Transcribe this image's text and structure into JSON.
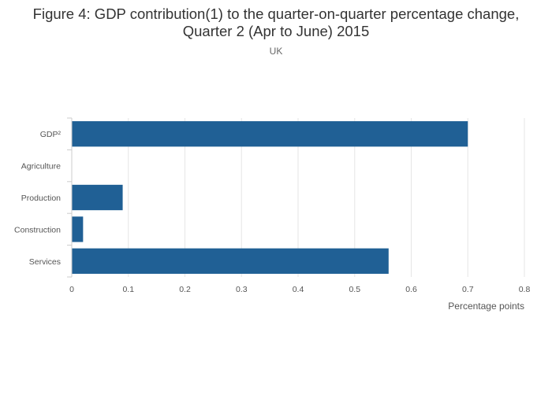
{
  "chart_data": {
    "type": "bar",
    "orientation": "horizontal",
    "title_line1": "Figure 4: GDP contribution(1) to the quarter-on-quarter percentage change,",
    "title_line2": "Quarter 2 (Apr to June) 2015",
    "subtitle": "UK",
    "categories": [
      "GDP²",
      "Agriculture",
      "Production",
      "Construction",
      "Services"
    ],
    "values": [
      0.7,
      0.0,
      0.09,
      0.02,
      0.56
    ],
    "xlabel": "Percentage points",
    "ylabel": "",
    "xlim": [
      0,
      0.8
    ],
    "xticks": [
      0,
      0.1,
      0.2,
      0.3,
      0.4,
      0.5,
      0.6,
      0.7,
      0.8
    ],
    "xtick_labels": [
      "0",
      "0.1",
      "0.2",
      "0.3",
      "0.4",
      "0.5",
      "0.6",
      "0.7",
      "0.8"
    ],
    "grid": "vertical",
    "bar_color": "#206095",
    "grid_color": "#e6e6e6",
    "axis_color": "#cccccc"
  }
}
